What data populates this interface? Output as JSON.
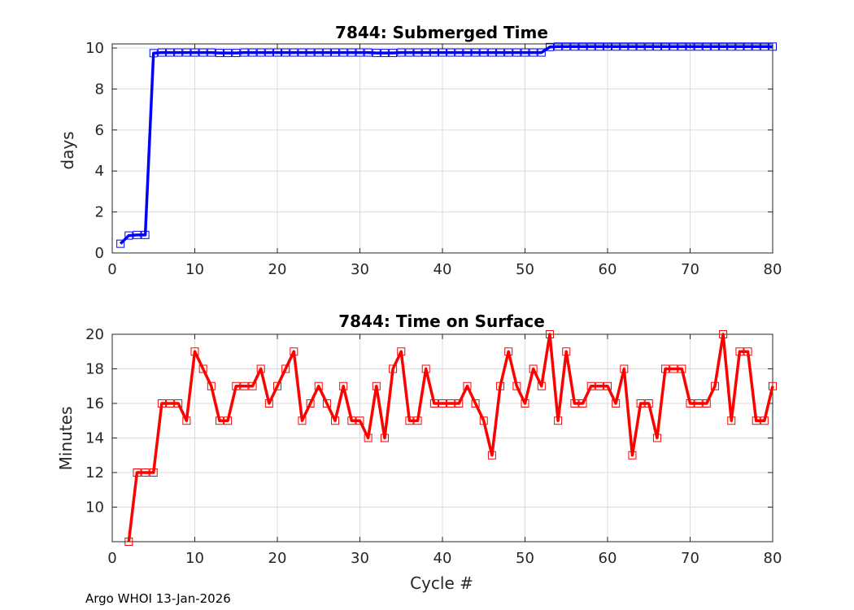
{
  "chart_data": [
    {
      "type": "line",
      "title": "7844: Submerged Time",
      "xlabel": "",
      "ylabel": "days",
      "xlim": [
        0,
        80
      ],
      "ylim": [
        0,
        10.2
      ],
      "xticks": [
        0,
        10,
        20,
        30,
        40,
        50,
        60,
        70,
        80
      ],
      "yticks": [
        0,
        2,
        4,
        6,
        8,
        10
      ],
      "grid": true,
      "color": "#0000ff",
      "marker": "square",
      "series": [
        {
          "x": [
            1,
            2,
            3,
            4,
            5,
            6,
            7,
            8,
            9,
            10,
            11,
            12,
            13,
            14,
            15,
            16,
            17,
            18,
            19,
            20,
            21,
            22,
            23,
            24,
            25,
            26,
            27,
            28,
            29,
            30,
            31,
            32,
            33,
            34,
            35,
            36,
            37,
            38,
            39,
            40,
            41,
            42,
            43,
            44,
            45,
            46,
            47,
            48,
            49,
            50,
            51,
            52,
            53,
            54,
            55,
            56,
            57,
            58,
            59,
            60,
            61,
            62,
            63,
            64,
            65,
            66,
            67,
            68,
            69,
            70,
            71,
            72,
            73,
            74,
            75,
            76,
            77,
            78,
            79,
            80
          ],
          "values": [
            0.45,
            0.85,
            0.88,
            0.88,
            9.75,
            9.78,
            9.78,
            9.78,
            9.78,
            9.78,
            9.78,
            9.78,
            9.76,
            9.76,
            9.76,
            9.78,
            9.78,
            9.78,
            9.78,
            9.78,
            9.78,
            9.78,
            9.78,
            9.78,
            9.78,
            9.78,
            9.78,
            9.78,
            9.78,
            9.78,
            9.78,
            9.76,
            9.76,
            9.76,
            9.78,
            9.78,
            9.78,
            9.78,
            9.78,
            9.78,
            9.78,
            9.78,
            9.78,
            9.78,
            9.78,
            9.78,
            9.78,
            9.78,
            9.78,
            9.78,
            9.78,
            9.78,
            10.05,
            10.07,
            10.07,
            10.07,
            10.07,
            10.07,
            10.07,
            10.07,
            10.07,
            10.07,
            10.07,
            10.07,
            10.07,
            10.07,
            10.07,
            10.07,
            10.07,
            10.07,
            10.07,
            10.07,
            10.07,
            10.07,
            10.07,
            10.07,
            10.07,
            10.07,
            10.07,
            10.07
          ]
        }
      ]
    },
    {
      "type": "line",
      "title": "7844: Time on Surface",
      "xlabel": "Cycle #",
      "ylabel": "Minutes",
      "xlim": [
        0,
        80
      ],
      "ylim": [
        8,
        20
      ],
      "xticks": [
        0,
        10,
        20,
        30,
        40,
        50,
        60,
        70,
        80
      ],
      "yticks": [
        10,
        12,
        14,
        16,
        18,
        20
      ],
      "grid": true,
      "color": "#ff0000",
      "marker": "square",
      "series": [
        {
          "x": [
            2,
            3,
            4,
            5,
            6,
            7,
            8,
            9,
            10,
            11,
            12,
            13,
            14,
            15,
            16,
            17,
            18,
            19,
            20,
            21,
            22,
            23,
            24,
            25,
            26,
            27,
            28,
            29,
            30,
            31,
            32,
            33,
            34,
            35,
            36,
            37,
            38,
            39,
            40,
            41,
            42,
            43,
            44,
            45,
            46,
            47,
            48,
            49,
            50,
            51,
            52,
            53,
            54,
            55,
            56,
            57,
            58,
            59,
            60,
            61,
            62,
            63,
            64,
            65,
            66,
            67,
            68,
            69,
            70,
            71,
            72,
            73,
            74,
            75,
            76,
            77,
            78,
            79,
            80
          ],
          "values": [
            8,
            12,
            12,
            12,
            16,
            16,
            16,
            15,
            19,
            18,
            17,
            15,
            15,
            17,
            17,
            17,
            18,
            16,
            17,
            18,
            19,
            15,
            16,
            17,
            16,
            15,
            17,
            15,
            15,
            14,
            17,
            14,
            18,
            19,
            15,
            15,
            18,
            16,
            16,
            16,
            16,
            17,
            16,
            15,
            13,
            17,
            19,
            17,
            16,
            18,
            17,
            20,
            15,
            19,
            16,
            16,
            17,
            17,
            17,
            16,
            18,
            13,
            16,
            16,
            14,
            18,
            18,
            18,
            16,
            16,
            16,
            17,
            20,
            15,
            19,
            19,
            15,
            15,
            17
          ]
        }
      ]
    }
  ],
  "footer": "Argo WHOI 13-Jan-2026"
}
